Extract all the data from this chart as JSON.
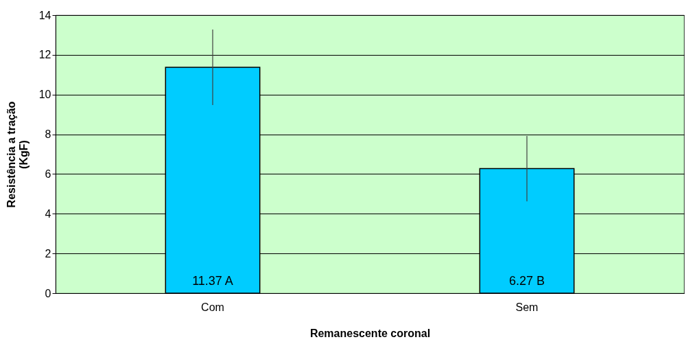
{
  "chart_data": {
    "type": "bar",
    "xlabel": "Remanescente coronal",
    "ylabel": "Resistência a tração\n(KgF)",
    "categories": [
      "Com",
      "Sem"
    ],
    "values": [
      11.37,
      6.27
    ],
    "color": "#00ccff",
    "errors": [
      1.9,
      1.65
    ],
    "value_labels": [
      "11.37 A",
      "6.27 B"
    ],
    "ylim": [
      0,
      14
    ],
    "yticks": [
      0,
      2,
      4,
      6,
      8,
      10,
      12,
      14
    ],
    "grid": "y"
  }
}
